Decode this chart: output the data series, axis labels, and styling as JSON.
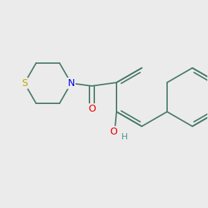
{
  "background_color": "#ebebeb",
  "bond_color": "#4a7a6a",
  "bond_width": 1.4,
  "atom_colors": {
    "S": "#b8a800",
    "N": "#0000ee",
    "O": "#ee0000",
    "H": "#4a9090",
    "C": "#000000"
  },
  "figsize": [
    3.0,
    3.0
  ],
  "dpi": 100,
  "xlim": [
    -2.8,
    3.2
  ],
  "ylim": [
    -2.2,
    2.4
  ]
}
